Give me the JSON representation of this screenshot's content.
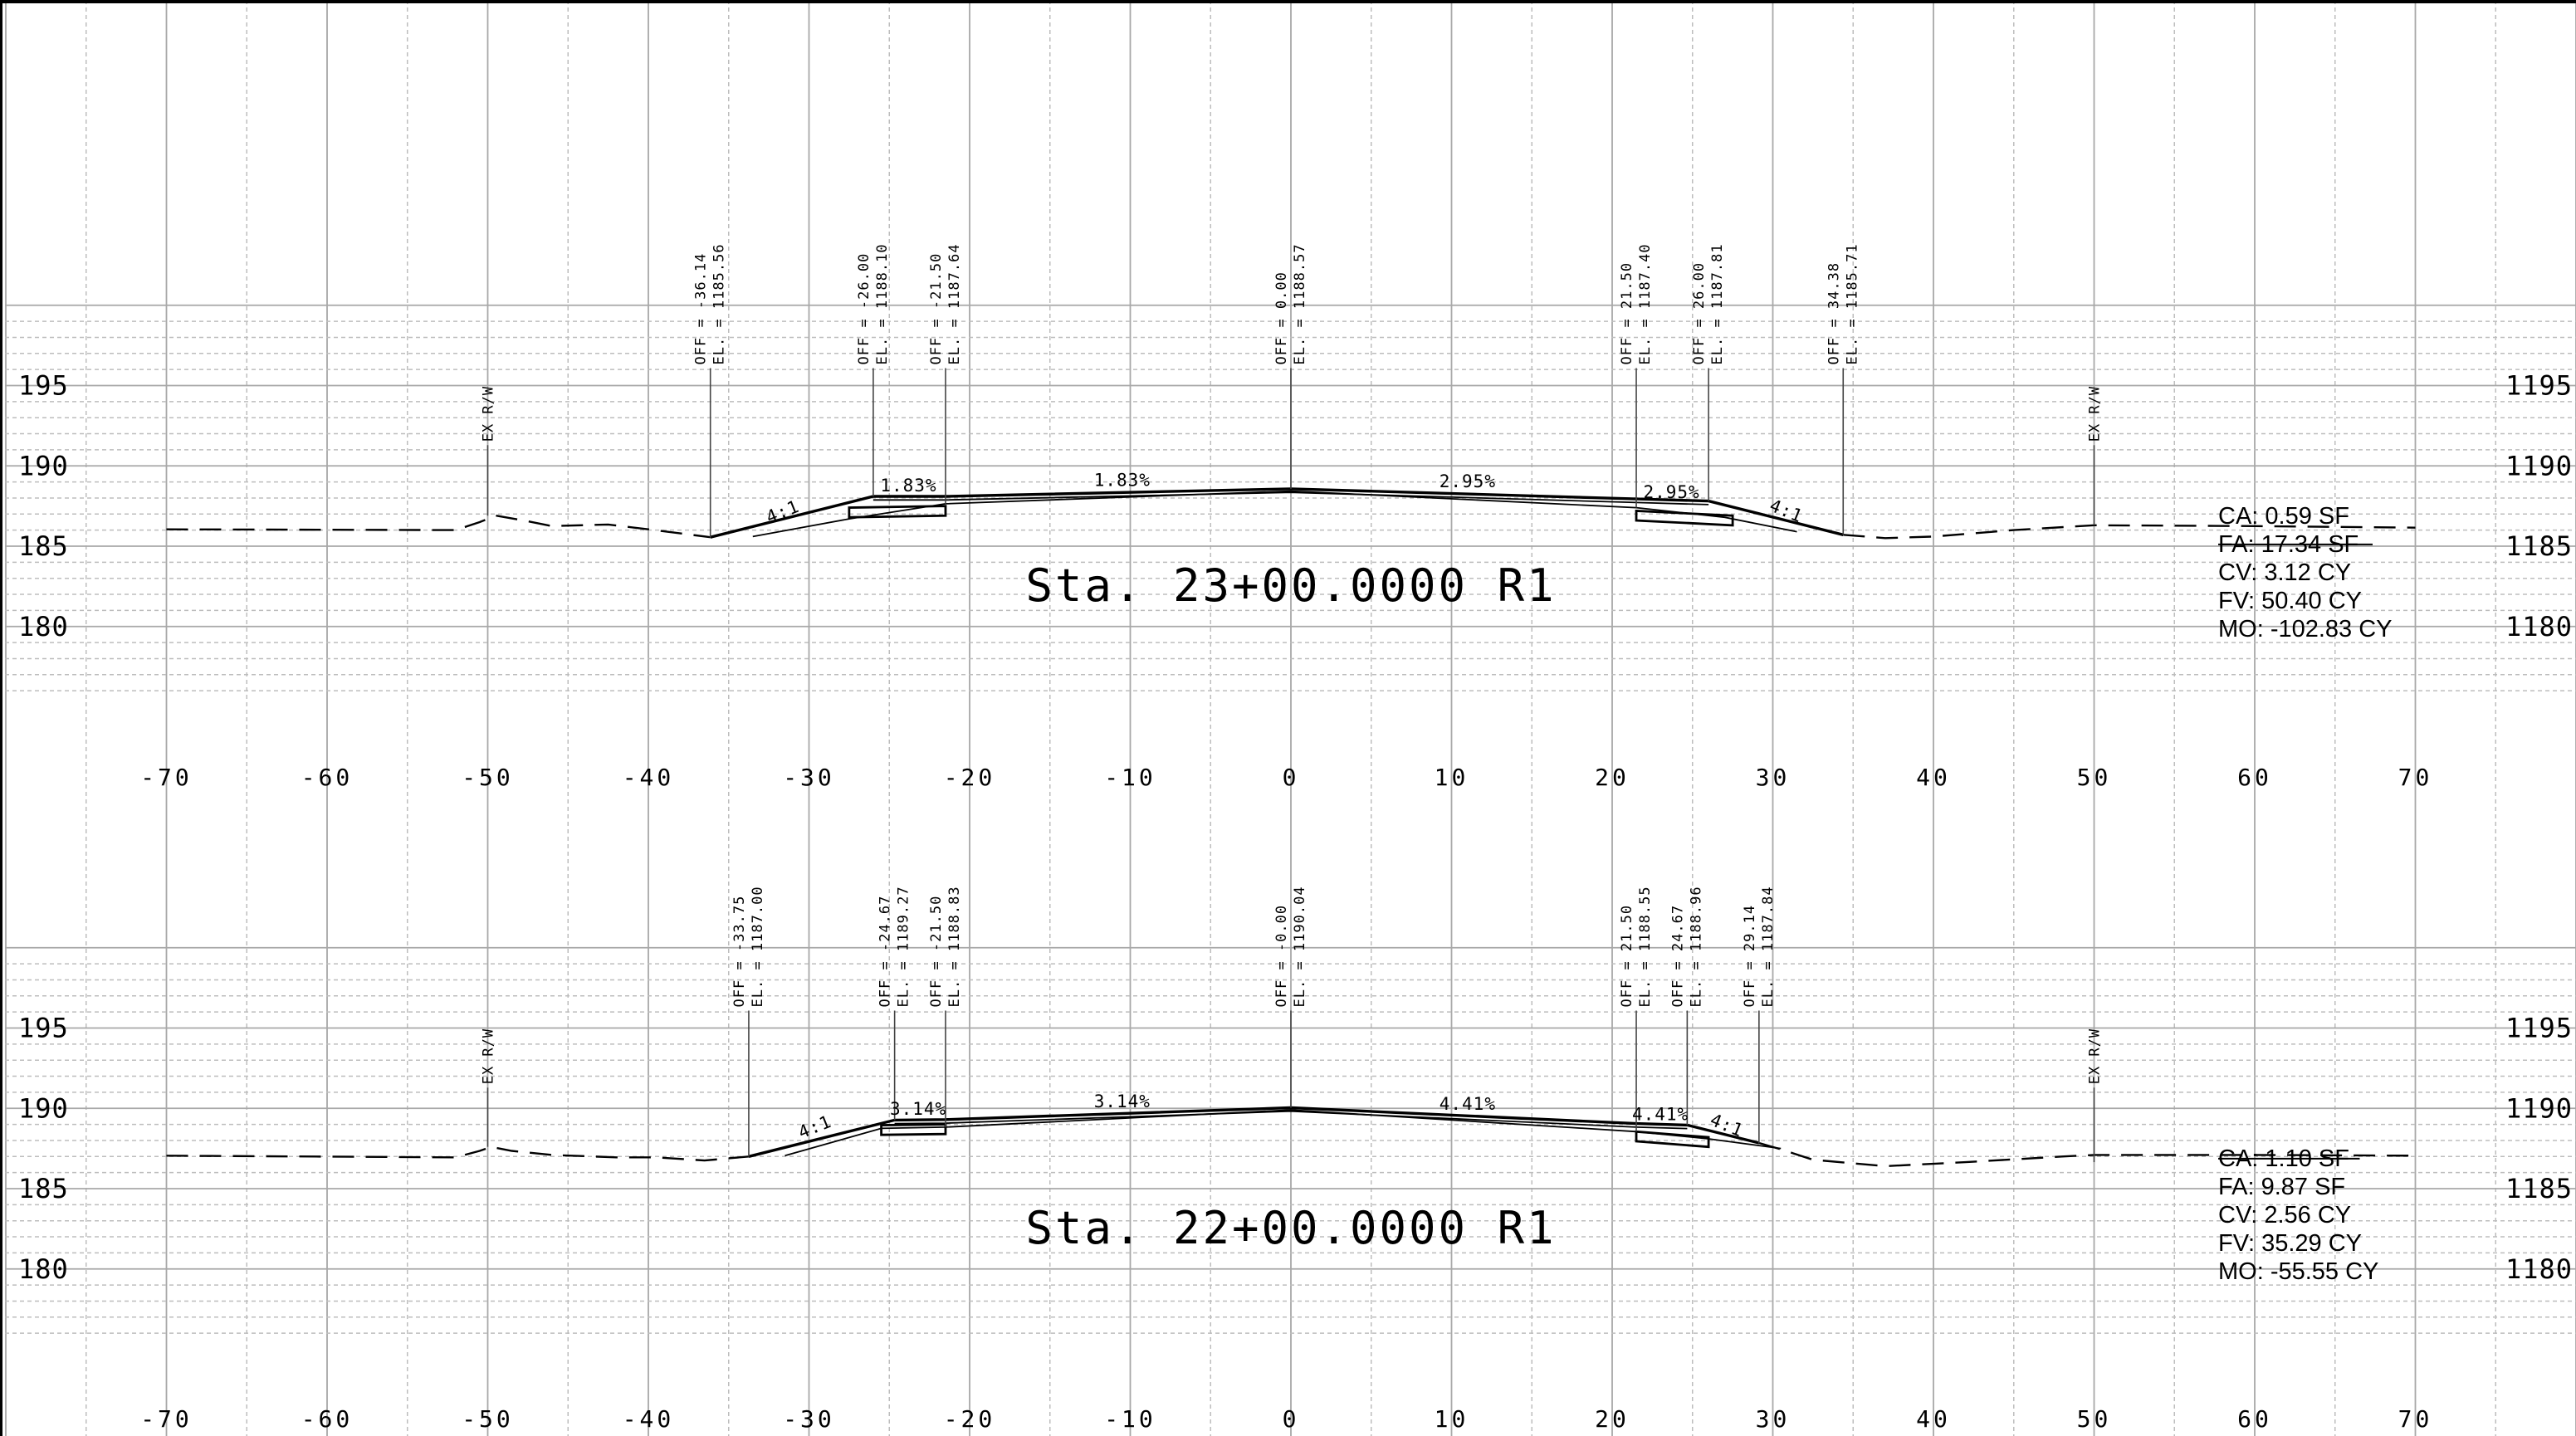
{
  "sections": [
    {
      "id": "upper",
      "title": "Sta. 23+00.0000 R1",
      "y_tick_labels_left": [
        "195",
        "190",
        "185",
        "180"
      ],
      "y_tick_labels_right": [
        "1195",
        "1190",
        "1185",
        "1180"
      ],
      "offset_labels": [
        "-70",
        "-60",
        "-50",
        "-40",
        "-30",
        "-20",
        "-10",
        "0",
        "10",
        "20",
        "30",
        "40",
        "50",
        "60",
        "70"
      ],
      "annotations": [
        {
          "off_text": "OFF = -36.14",
          "el_text": "EL. = 1185.56",
          "offset": -36.14,
          "elevation": 1185.56
        },
        {
          "off_text": "OFF = -26.00",
          "el_text": "EL. = 1188.10",
          "offset": -26.0,
          "elevation": 1188.1
        },
        {
          "off_text": "OFF = -21.50",
          "el_text": "EL. = 1187.64",
          "offset": -21.5,
          "elevation": 1187.64
        },
        {
          "off_text": "OFF = 0.00",
          "el_text": "EL. = 1188.57",
          "offset": 0.0,
          "elevation": 1188.57
        },
        {
          "off_text": "OFF = 21.50",
          "el_text": "EL. = 1187.40",
          "offset": 21.5,
          "elevation": 1187.4
        },
        {
          "off_text": "OFF = 26.00",
          "el_text": "EL. = 1187.81",
          "offset": 26.0,
          "elevation": 1187.81
        },
        {
          "off_text": "OFF = 34.38",
          "el_text": "EL. = 1185.71",
          "offset": 34.38,
          "elevation": 1185.71
        }
      ],
      "row_labels": [
        {
          "text": "EX R/W",
          "offset": -50
        },
        {
          "text": "EX R/W",
          "offset": 50
        }
      ],
      "slope_labels": [
        {
          "text": "4:1",
          "offset": -31.5,
          "elevation": 1186.6,
          "angle": -22
        },
        {
          "text": "1.83%",
          "offset": -23.8,
          "elevation": 1188.2,
          "angle": 0
        },
        {
          "text": "1.83%",
          "offset": -10.5,
          "elevation": 1188.55,
          "angle": 0
        },
        {
          "text": "2.95%",
          "offset": 11.0,
          "elevation": 1188.45,
          "angle": 0
        },
        {
          "text": "2.95%",
          "offset": 23.7,
          "elevation": 1187.8,
          "angle": 0
        },
        {
          "text": "4:1",
          "offset": 30.7,
          "elevation": 1186.65,
          "angle": 22
        }
      ],
      "quantities": [
        "CA: 0.59 SF",
        "FA: 17.34 SF",
        "CV: 3.12 CY",
        "FV: 50.40 CY",
        "MO: -102.83 CY"
      ],
      "struck_quantity_index": 1,
      "existing_ground": [
        [
          -70,
          1186.05
        ],
        [
          -52,
          1186.0
        ],
        [
          -50.5,
          1186.5
        ],
        [
          -49.5,
          1186.9
        ],
        [
          -47.5,
          1186.55
        ],
        [
          -46,
          1186.25
        ],
        [
          -42.5,
          1186.35
        ],
        [
          -40,
          1186.05
        ],
        [
          -36.14,
          1185.56
        ]
      ],
      "existing_ground_right": [
        [
          34.38,
          1185.71
        ],
        [
          37,
          1185.5
        ],
        [
          40,
          1185.6
        ],
        [
          45,
          1186.0
        ],
        [
          50,
          1186.3
        ],
        [
          60,
          1186.25
        ],
        [
          70,
          1186.15
        ]
      ],
      "template_top": [
        [
          -36.14,
          1185.56
        ],
        [
          -26.0,
          1188.1
        ],
        [
          -21.5,
          1188.1
        ],
        [
          0,
          1188.57
        ],
        [
          21.5,
          1187.94
        ],
        [
          26.0,
          1187.81
        ],
        [
          34.38,
          1185.71
        ]
      ],
      "template_sub": [
        [
          -33.5,
          1185.6
        ],
        [
          -27.5,
          1186.7
        ],
        [
          -21.5,
          1187.64
        ],
        [
          0,
          1188.43
        ],
        [
          21.5,
          1187.4
        ],
        [
          27.0,
          1186.8
        ],
        [
          31.5,
          1185.9
        ]
      ],
      "boxes": [
        {
          "x1": -27.5,
          "x2": -21.5,
          "y_top_left": 1187.4,
          "y_top_right": 1187.5,
          "depth": 0.6
        },
        {
          "x1": 21.5,
          "x2": 27.5,
          "y_top_left": 1187.2,
          "y_top_right": 1186.9,
          "depth": 0.6
        }
      ]
    },
    {
      "id": "lower",
      "title": "Sta. 22+00.0000 R1",
      "y_tick_labels_left": [
        "195",
        "190",
        "185",
        "180"
      ],
      "y_tick_labels_right": [
        "1195",
        "1190",
        "1185",
        "1180"
      ],
      "offset_labels": [
        "-70",
        "-60",
        "-50",
        "-40",
        "-30",
        "-20",
        "-10",
        "0",
        "10",
        "20",
        "30",
        "40",
        "50",
        "60",
        "70"
      ],
      "annotations": [
        {
          "off_text": "OFF = -33.75",
          "el_text": "EL. = 1187.00",
          "offset": -33.75,
          "elevation": 1187.0
        },
        {
          "off_text": "OFF = -24.67",
          "el_text": "EL. = 1189.27",
          "offset": -24.67,
          "elevation": 1189.27
        },
        {
          "off_text": "OFF = -21.50",
          "el_text": "EL. = 1188.83",
          "offset": -21.5,
          "elevation": 1188.83
        },
        {
          "off_text": "OFF = -0.00",
          "el_text": "EL. = 1190.04",
          "offset": 0.0,
          "elevation": 1190.04
        },
        {
          "off_text": "OFF = 21.50",
          "el_text": "EL. = 1188.55",
          "offset": 21.5,
          "elevation": 1188.55
        },
        {
          "off_text": "OFF = 24.67",
          "el_text": "EL. = 1188.96",
          "offset": 24.67,
          "elevation": 1188.96
        },
        {
          "off_text": "OFF = 29.14",
          "el_text": "EL. = 1187.84",
          "offset": 29.14,
          "elevation": 1187.84
        }
      ],
      "row_labels": [
        {
          "text": "EX R/W",
          "offset": -50
        },
        {
          "text": "EX R/W",
          "offset": 50
        }
      ],
      "slope_labels": [
        {
          "text": "4:1",
          "offset": -29.5,
          "elevation": 1188.3,
          "angle": -22
        },
        {
          "text": "3.14%",
          "offset": -23.2,
          "elevation": 1189.38,
          "angle": 0
        },
        {
          "text": "3.14%",
          "offset": -10.5,
          "elevation": 1189.85,
          "angle": 0
        },
        {
          "text": "4.41%",
          "offset": 11.0,
          "elevation": 1189.7,
          "angle": 0
        },
        {
          "text": "4.41%",
          "offset": 23.0,
          "elevation": 1189.05,
          "angle": 0
        },
        {
          "text": "4:1",
          "offset": 27.0,
          "elevation": 1188.4,
          "angle": 22
        }
      ],
      "quantities": [
        "CA: 1.10 SF",
        "FA: 9.87 SF",
        "CV: 2.56 CY",
        "FV: 35.29 CY",
        "MO: -55.55 CY"
      ],
      "struck_quantity_index": 0,
      "existing_ground": [
        [
          -70,
          1187.05
        ],
        [
          -52,
          1186.95
        ],
        [
          -50.5,
          1187.35
        ],
        [
          -49.8,
          1187.6
        ],
        [
          -48.5,
          1187.35
        ],
        [
          -46,
          1187.1
        ],
        [
          -42,
          1186.95
        ],
        [
          -39.5,
          1186.95
        ],
        [
          -36.5,
          1186.75
        ],
        [
          -33.75,
          1187.0
        ]
      ],
      "existing_ground_right": [
        [
          29.14,
          1187.84
        ],
        [
          30.5,
          1187.45
        ],
        [
          32.5,
          1186.8
        ],
        [
          37,
          1186.4
        ],
        [
          42,
          1186.65
        ],
        [
          48,
          1187.0
        ],
        [
          50,
          1187.1
        ],
        [
          60,
          1187.1
        ],
        [
          70,
          1187.05
        ]
      ],
      "template_top": [
        [
          -33.75,
          1187.0
        ],
        [
          -24.67,
          1189.27
        ],
        [
          -21.5,
          1189.3
        ],
        [
          0,
          1190.04
        ],
        [
          21.5,
          1189.05
        ],
        [
          24.67,
          1188.96
        ],
        [
          29.14,
          1187.84
        ]
      ],
      "template_sub": [
        [
          -31.5,
          1187.05
        ],
        [
          -25.5,
          1188.75
        ],
        [
          -21.5,
          1188.83
        ],
        [
          0,
          1189.9
        ],
        [
          21.5,
          1188.55
        ],
        [
          26.0,
          1188.1
        ],
        [
          30.5,
          1187.5
        ]
      ],
      "boxes": [
        {
          "x1": -25.5,
          "x2": -21.5,
          "y_top_left": 1188.95,
          "y_top_right": 1189.0,
          "depth": 0.6
        },
        {
          "x1": 21.5,
          "x2": 26.0,
          "y_top_left": 1188.55,
          "y_top_right": 1188.2,
          "depth": 0.6
        }
      ]
    }
  ]
}
